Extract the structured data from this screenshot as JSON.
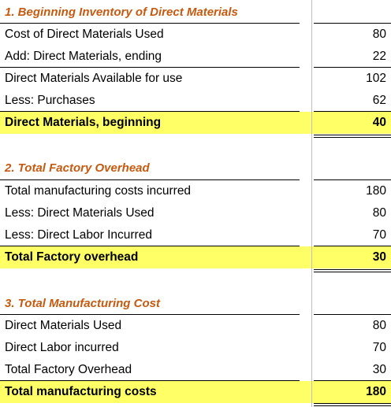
{
  "sections": [
    {
      "title": "1. Beginning Inventory of Direct Materials",
      "rows": [
        {
          "label": "Cost of Direct Materials Used",
          "value": "80"
        },
        {
          "label": "Add: Direct Materials, ending",
          "value": "22"
        },
        {
          "label": "Direct Materials Available for use",
          "value": "102"
        },
        {
          "label": "Less: Purchases",
          "value": "62"
        }
      ],
      "total": {
        "label": "Direct Materials, beginning",
        "value": "40"
      }
    },
    {
      "title": "2. Total Factory Overhead",
      "rows": [
        {
          "label": "Total manufacturing costs incurred",
          "value": "180"
        },
        {
          "label": "Less: Direct Materials Used",
          "value": "80"
        },
        {
          "label": "Less: Direct Labor Incurred",
          "value": "70"
        }
      ],
      "total": {
        "label": "Total Factory overhead",
        "value": "30"
      }
    },
    {
      "title": "3. Total Manufacturing Cost",
      "rows": [
        {
          "label": "Direct Materials Used",
          "value": "80"
        },
        {
          "label": "Direct Labor incurred",
          "value": "70"
        },
        {
          "label": "Total Factory Overhead",
          "value": "30"
        }
      ],
      "total": {
        "label": "Total manufacturing costs",
        "value": "180"
      }
    }
  ],
  "colors": {
    "heading": "#c55a11",
    "highlight": "#ffff66"
  }
}
